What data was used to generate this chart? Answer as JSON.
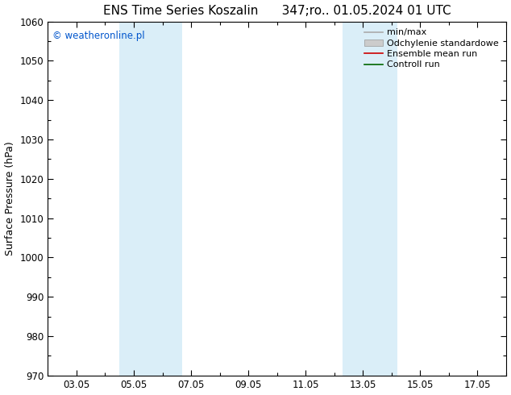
{
  "title_left": "ENS Time Series Koszalin",
  "title_right": "347;ro.. 01.05.2024 01 UTC",
  "ylabel": "Surface Pressure (hPa)",
  "ylim": [
    970,
    1060
  ],
  "yticks": [
    970,
    980,
    990,
    1000,
    1010,
    1020,
    1030,
    1040,
    1050,
    1060
  ],
  "xtick_labels": [
    "03.05",
    "05.05",
    "07.05",
    "09.05",
    "11.05",
    "13.05",
    "15.05",
    "17.05"
  ],
  "xtick_positions": [
    2,
    4,
    6,
    8,
    10,
    12,
    14,
    16
  ],
  "xlim": [
    1,
    17
  ],
  "shaded_bands": [
    {
      "x_start": 3.5,
      "x_end": 5.7,
      "color": "#daeef8"
    },
    {
      "x_start": 11.3,
      "x_end": 13.2,
      "color": "#daeef8"
    }
  ],
  "legend_entries": [
    {
      "label": "min/max",
      "color": "#aaaaaa",
      "lw": 1.2
    },
    {
      "label": "Odchylenie standardowe",
      "color": "#cccccc",
      "lw": 6
    },
    {
      "label": "Ensemble mean run",
      "color": "#cc0000",
      "lw": 1.2
    },
    {
      "label": "Controll run",
      "color": "#006600",
      "lw": 1.2
    }
  ],
  "watermark": "© weatheronline.pl",
  "watermark_color": "#0055cc",
  "background_color": "#ffffff",
  "plot_bg_color": "#ffffff",
  "title_fontsize": 11,
  "axis_label_fontsize": 9,
  "tick_fontsize": 8.5,
  "legend_fontsize": 8
}
